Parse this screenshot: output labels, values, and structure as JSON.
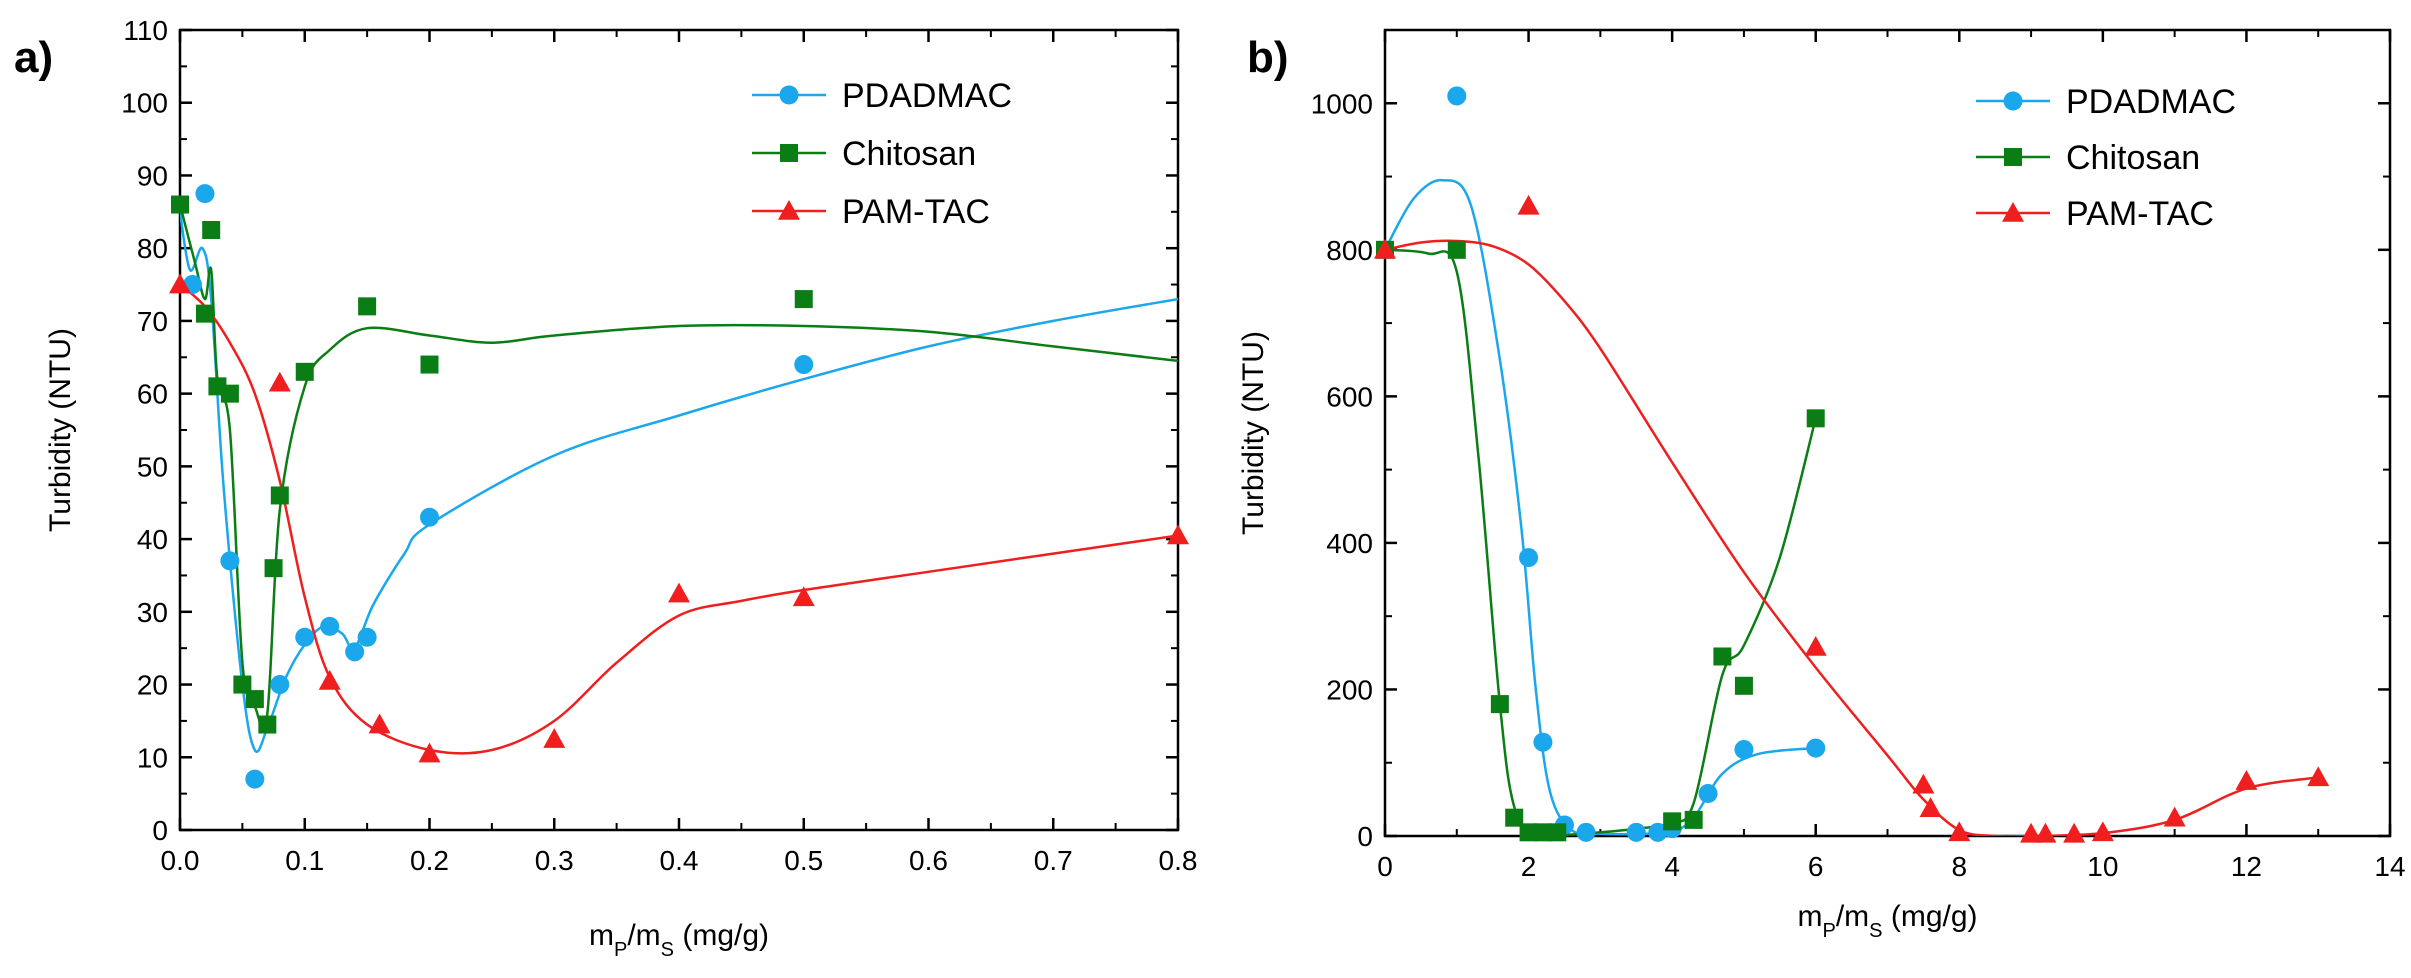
{
  "chart_data": [
    {
      "type": "scatter",
      "panel_label": "a)",
      "xlabel_main": "m",
      "xlabel_sub1": "P",
      "xlabel_mid": "/m",
      "xlabel_sub2": "S",
      "xlabel_unit": " (mg/g)",
      "ylabel": "Turbidity (NTU)",
      "xlim": [
        0,
        0.8
      ],
      "ylim": [
        0,
        110
      ],
      "x_ticks": [
        0.0,
        0.1,
        0.2,
        0.3,
        0.4,
        0.5,
        0.6,
        0.7,
        0.8
      ],
      "x_tick_labels": [
        "0.0",
        "0.1",
        "0.2",
        "0.3",
        "0.4",
        "0.5",
        "0.6",
        "0.7",
        "0.8"
      ],
      "y_ticks": [
        0,
        10,
        20,
        30,
        40,
        50,
        60,
        70,
        80,
        90,
        100,
        110
      ],
      "y_tick_labels": [
        "0",
        "10",
        "20",
        "30",
        "40",
        "50",
        "60",
        "70",
        "80",
        "90",
        "100",
        "110"
      ],
      "legend_position": "top-right",
      "series": [
        {
          "name": "PDADMAC",
          "color": "#1AA7EC",
          "marker": "circle",
          "points": [
            [
              0.01,
              75
            ],
            [
              0.02,
              87.5
            ],
            [
              0.04,
              37
            ],
            [
              0.06,
              7
            ],
            [
              0.08,
              20
            ],
            [
              0.1,
              26.5
            ],
            [
              0.12,
              28
            ],
            [
              0.14,
              24.5
            ],
            [
              0.15,
              26.5
            ],
            [
              0.2,
              43
            ],
            [
              0.5,
              64
            ]
          ],
          "curve": [
            [
              0,
              85
            ],
            [
              0.008,
              77
            ],
            [
              0.018,
              80
            ],
            [
              0.025,
              73
            ],
            [
              0.035,
              47
            ],
            [
              0.05,
              20
            ],
            [
              0.06,
              11
            ],
            [
              0.07,
              14
            ],
            [
              0.085,
              21
            ],
            [
              0.1,
              25.5
            ],
            [
              0.115,
              28
            ],
            [
              0.13,
              27
            ],
            [
              0.14,
              25
            ],
            [
              0.155,
              31
            ],
            [
              0.18,
              38
            ],
            [
              0.2,
              42
            ],
            [
              0.3,
              51.5
            ],
            [
              0.4,
              57
            ],
            [
              0.5,
              62
            ],
            [
              0.6,
              66.5
            ],
            [
              0.7,
              70
            ],
            [
              0.8,
              73
            ]
          ]
        },
        {
          "name": "Chitosan",
          "color": "#0A7D14",
          "marker": "square",
          "points": [
            [
              0.0,
              86
            ],
            [
              0.02,
              71
            ],
            [
              0.025,
              82.5
            ],
            [
              0.03,
              61
            ],
            [
              0.04,
              60
            ],
            [
              0.05,
              20
            ],
            [
              0.06,
              18
            ],
            [
              0.07,
              14.5
            ],
            [
              0.075,
              36
            ],
            [
              0.08,
              46
            ],
            [
              0.1,
              63
            ],
            [
              0.15,
              72
            ],
            [
              0.2,
              64
            ],
            [
              0.5,
              73
            ]
          ],
          "curve": [
            [
              0,
              86
            ],
            [
              0.012,
              78
            ],
            [
              0.02,
              73
            ],
            [
              0.025,
              77
            ],
            [
              0.03,
              62
            ],
            [
              0.04,
              55
            ],
            [
              0.05,
              23
            ],
            [
              0.06,
              17
            ],
            [
              0.07,
              16
            ],
            [
              0.08,
              44
            ],
            [
              0.1,
              61
            ],
            [
              0.12,
              66
            ],
            [
              0.15,
              69
            ],
            [
              0.2,
              68
            ],
            [
              0.25,
              67
            ],
            [
              0.3,
              68
            ],
            [
              0.4,
              69.3
            ],
            [
              0.5,
              69.3
            ],
            [
              0.6,
              68.5
            ],
            [
              0.7,
              66.5
            ],
            [
              0.8,
              64.5
            ]
          ]
        },
        {
          "name": "PAM-TAC",
          "color": "#F01E1E",
          "marker": "triangle",
          "points": [
            [
              0.0,
              75
            ],
            [
              0.08,
              61.5
            ],
            [
              0.12,
              20.5
            ],
            [
              0.16,
              14.5
            ],
            [
              0.2,
              10.5
            ],
            [
              0.3,
              12.5
            ],
            [
              0.4,
              32.5
            ],
            [
              0.5,
              32
            ],
            [
              0.8,
              40.5
            ]
          ],
          "curve": [
            [
              0,
              75
            ],
            [
              0.02,
              72
            ],
            [
              0.04,
              67
            ],
            [
              0.06,
              60
            ],
            [
              0.08,
              48
            ],
            [
              0.1,
              32
            ],
            [
              0.12,
              21
            ],
            [
              0.15,
              14.5
            ],
            [
              0.2,
              11
            ],
            [
              0.25,
              11
            ],
            [
              0.3,
              15
            ],
            [
              0.35,
              23
            ],
            [
              0.4,
              29.5
            ],
            [
              0.45,
              31.5
            ],
            [
              0.5,
              33
            ],
            [
              0.6,
              35.5
            ],
            [
              0.7,
              38
            ],
            [
              0.8,
              40.5
            ]
          ]
        }
      ]
    },
    {
      "type": "scatter",
      "panel_label": "b)",
      "xlabel_main": "m",
      "xlabel_sub1": "P",
      "xlabel_mid": "/m",
      "xlabel_sub2": "S",
      "xlabel_unit": " (mg/g)",
      "ylabel": "Turbidity (NTU)",
      "xlim": [
        0,
        14
      ],
      "ylim": [
        0,
        1100
      ],
      "x_ticks": [
        0,
        2,
        4,
        6,
        8,
        10,
        12,
        14
      ],
      "x_tick_labels": [
        "0",
        "2",
        "4",
        "6",
        "8",
        "10",
        "12",
        "14"
      ],
      "y_ticks": [
        0,
        200,
        400,
        600,
        800,
        1000
      ],
      "y_tick_labels": [
        "0",
        "200",
        "400",
        "600",
        "800",
        "1000"
      ],
      "legend_position": "top-right",
      "series": [
        {
          "name": "PDADMAC",
          "color": "#1AA7EC",
          "marker": "circle",
          "points": [
            [
              1,
              1010
            ],
            [
              2,
              380
            ],
            [
              2.2,
              128
            ],
            [
              2.5,
              15
            ],
            [
              2.8,
              5
            ],
            [
              3.5,
              5
            ],
            [
              3.8,
              5
            ],
            [
              4,
              10
            ],
            [
              4.5,
              58
            ],
            [
              5,
              118
            ],
            [
              6,
              120
            ]
          ],
          "curve": [
            [
              0,
              800
            ],
            [
              0.4,
              870
            ],
            [
              0.8,
              895
            ],
            [
              1.2,
              860
            ],
            [
              1.6,
              650
            ],
            [
              1.9,
              420
            ],
            [
              2.1,
              200
            ],
            [
              2.3,
              60
            ],
            [
              2.6,
              8
            ],
            [
              3,
              3
            ],
            [
              3.6,
              3
            ],
            [
              4,
              6
            ],
            [
              4.3,
              25
            ],
            [
              4.7,
              85
            ],
            [
              5.2,
              112
            ],
            [
              6,
              120
            ]
          ]
        },
        {
          "name": "Chitosan",
          "color": "#0A7D14",
          "marker": "square",
          "points": [
            [
              0,
              800
            ],
            [
              1,
              800
            ],
            [
              1.6,
              180
            ],
            [
              1.8,
              25
            ],
            [
              2,
              5
            ],
            [
              2.2,
              5
            ],
            [
              2.4,
              5
            ],
            [
              4,
              20
            ],
            [
              4.3,
              22
            ],
            [
              4.7,
              245
            ],
            [
              5,
              205
            ],
            [
              6,
              570
            ]
          ],
          "curve": [
            [
              0,
              800
            ],
            [
              0.6,
              795
            ],
            [
              1,
              770
            ],
            [
              1.3,
              520
            ],
            [
              1.6,
              180
            ],
            [
              1.8,
              40
            ],
            [
              2.1,
              5
            ],
            [
              2.6,
              2
            ],
            [
              3,
              5
            ],
            [
              3.5,
              10
            ],
            [
              4,
              18
            ],
            [
              4.3,
              45
            ],
            [
              4.7,
              220
            ],
            [
              5,
              260
            ],
            [
              5.5,
              380
            ],
            [
              6,
              570
            ]
          ]
        },
        {
          "name": "PAM-TAC",
          "color": "#F01E1E",
          "marker": "triangle",
          "points": [
            [
              0,
              800
            ],
            [
              2,
              860
            ],
            [
              6,
              258
            ],
            [
              7.5,
              70
            ],
            [
              7.6,
              38
            ],
            [
              8,
              5
            ],
            [
              9,
              3
            ],
            [
              9.2,
              3
            ],
            [
              9.6,
              3
            ],
            [
              10,
              5
            ],
            [
              11,
              25
            ],
            [
              12,
              75
            ],
            [
              13,
              80
            ]
          ],
          "curve": [
            [
              0,
              800
            ],
            [
              0.5,
              810
            ],
            [
              1,
              812
            ],
            [
              1.5,
              805
            ],
            [
              2,
              780
            ],
            [
              2.5,
              730
            ],
            [
              3,
              665
            ],
            [
              4,
              510
            ],
            [
              5,
              360
            ],
            [
              6,
              230
            ],
            [
              7,
              110
            ],
            [
              7.5,
              50
            ],
            [
              8,
              8
            ],
            [
              8.5,
              0
            ],
            [
              9,
              0
            ],
            [
              10,
              4
            ],
            [
              11,
              22
            ],
            [
              12,
              65
            ],
            [
              13,
              80
            ]
          ]
        }
      ]
    }
  ]
}
